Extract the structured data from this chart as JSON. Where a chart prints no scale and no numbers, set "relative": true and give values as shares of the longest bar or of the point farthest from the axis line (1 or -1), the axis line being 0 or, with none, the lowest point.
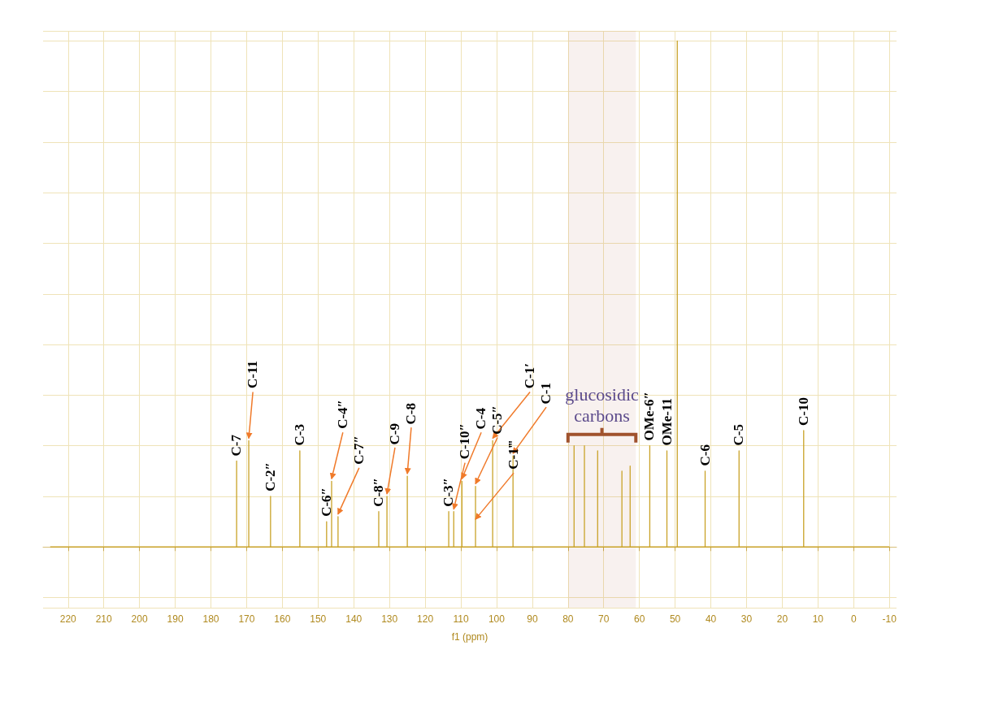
{
  "chart_data": {
    "type": "line",
    "relative": true,
    "xlabel": "f1 (ppm)",
    "color": "#c9a227",
    "x": [
      225,
      172.8,
      172.8,
      172.8,
      169.4,
      169.4,
      169.4,
      163.3,
      163.3,
      163.3,
      155.1,
      155.1,
      155.1,
      147.6,
      147.6,
      147.6,
      146.2,
      146.2,
      146.2,
      144.4,
      144.4,
      144.4,
      133.0,
      133.0,
      133.0,
      130.7,
      130.7,
      130.7,
      125.0,
      125.0,
      125.0,
      113.4,
      113.4,
      113.4,
      112.0,
      112.0,
      112.0,
      109.7,
      109.7,
      109.7,
      105.9,
      105.9,
      105.9,
      101.1,
      101.1,
      101.1,
      95.4,
      95.4,
      95.4,
      78.3,
      78.3,
      78.3,
      75.4,
      75.4,
      75.4,
      71.7,
      71.7,
      71.7,
      64.9,
      64.9,
      64.9,
      62.6,
      62.6,
      62.6,
      57.1,
      57.1,
      57.1,
      52.3,
      52.3,
      52.3,
      49.4,
      49.4,
      49.4,
      41.6,
      41.6,
      41.6,
      32.1,
      32.1,
      32.1,
      14.0,
      14.0,
      14.0,
      -10
    ],
    "values": [
      0,
      0,
      0.17,
      0,
      0,
      0.21,
      0,
      0,
      0.1,
      0,
      0,
      0.19,
      0,
      0,
      0.05,
      0,
      0,
      0.13,
      0,
      0,
      0.06,
      0,
      0,
      0.07,
      0,
      0,
      0.1,
      0,
      0,
      0.14,
      0,
      0,
      0.07,
      0,
      0,
      0.07,
      0,
      0,
      0.13,
      0,
      0,
      0.12,
      0,
      0,
      0.21,
      0,
      0,
      0.18,
      0,
      0,
      0.2,
      0,
      0,
      0.2,
      0,
      0,
      0.19,
      0,
      0,
      0.15,
      0,
      0,
      0.16,
      0,
      0,
      0.2,
      0,
      0,
      0.19,
      0,
      0,
      1,
      0,
      0,
      0.15,
      0,
      0,
      0.19,
      0,
      0,
      0.23,
      0,
      0
    ],
    "xlim": [
      227,
      -12
    ],
    "xticks": [
      220,
      210,
      200,
      190,
      180,
      170,
      160,
      150,
      140,
      130,
      120,
      110,
      100,
      90,
      80,
      70,
      60,
      50,
      40,
      30,
      20,
      10,
      0,
      -10
    ],
    "grid": true,
    "marker": "none",
    "line_style": "solid",
    "bands": [
      {
        "axis": "x",
        "from": 80,
        "to": 61,
        "label": "glucosidic carbons",
        "color": "#a0522d"
      }
    ],
    "annotations": [
      {
        "text": "C-7",
        "x": 172.8,
        "y": 0.17
      },
      {
        "text": "C-11",
        "x": 169.4,
        "y": 0.21
      },
      {
        "text": "C-2″",
        "x": 163.3,
        "y": 0.1
      },
      {
        "text": "C-3",
        "x": 155.1,
        "y": 0.19
      },
      {
        "text": "C-6″",
        "x": 147.6,
        "y": 0.05
      },
      {
        "text": "C-4″",
        "x": 146.2,
        "y": 0.13
      },
      {
        "text": "C-7″",
        "x": 144.4,
        "y": 0.06
      },
      {
        "text": "C-8″",
        "x": 133.0,
        "y": 0.07
      },
      {
        "text": "C-9",
        "x": 130.7,
        "y": 0.1
      },
      {
        "text": "C-8",
        "x": 125.0,
        "y": 0.14
      },
      {
        "text": "C-3″",
        "x": 113.4,
        "y": 0.07
      },
      {
        "text": "C-10″",
        "x": 112.0,
        "y": 0.07
      },
      {
        "text": "C-4",
        "x": 109.7,
        "y": 0.13
      },
      {
        "text": "C-5″",
        "x": 105.9,
        "y": 0.12
      },
      {
        "text": "C-1′",
        "x": 101.1,
        "y": 0.21
      },
      {
        "text": "C-1",
        "x": 95.4,
        "y": 0.18
      },
      {
        "text": "C-1‴",
        "x": 105.9,
        "y": 0.05
      },
      {
        "text": "OMe-6″",
        "x": 57.1,
        "y": 0.2
      },
      {
        "text": "OMe-11",
        "x": 52.3,
        "y": 0.19
      },
      {
        "text": "C-6",
        "x": 41.6,
        "y": 0.15
      },
      {
        "text": "C-5",
        "x": 32.1,
        "y": 0.19
      },
      {
        "text": "C-10",
        "x": 14.0,
        "y": 0.23
      }
    ]
  }
}
